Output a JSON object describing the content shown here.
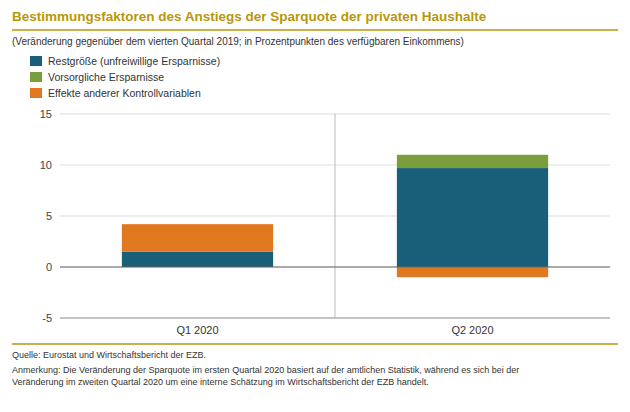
{
  "chart_data": {
    "type": "bar",
    "stacked": true,
    "title": "Bestimmungsfaktoren des Anstiegs der Sparquote der privaten Haushalte",
    "subtitle": "(Veränderung gegenüber dem vierten Quartal 2019; in Prozentpunkten des verfügbaren Einkommens)",
    "categories": [
      "Q1 2020",
      "Q2 2020"
    ],
    "series": [
      {
        "name": "Restgröße (unfreiwillige Ersparnisse)",
        "color": "#1a5f7a",
        "values": [
          1.5,
          9.7
        ]
      },
      {
        "name": "Vorsorgliche Ersparnisse",
        "color": "#7a9e3b",
        "values": [
          0.0,
          1.3
        ]
      },
      {
        "name": "Effekte anderer Kontrollvariablen",
        "color": "#e07820",
        "values": [
          2.7,
          -1.0
        ]
      }
    ],
    "ylim": [
      -5,
      15
    ],
    "yticks": [
      -5,
      0,
      5,
      10,
      15
    ],
    "grid": true,
    "legend": "upper left",
    "annotations": [
      "Quelle: Eurostat und Wirtschaftsbericht der EZB.",
      "Anmerkung: Die Veränderung der Sparquote im ersten Quartal 2020 basiert auf der amtlichen Statistik, während es sich bei der\nVeränderung im zweiten Quartal 2020 um eine interne Schätzung im Wirtschaftsbericht der EZB handelt."
    ]
  }
}
